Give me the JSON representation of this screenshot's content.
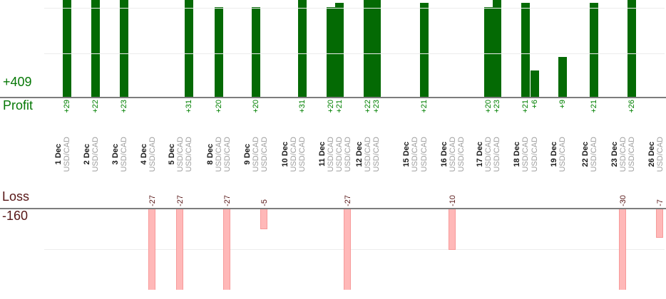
{
  "chart_data": {
    "type": "bar",
    "symbol": "USD/CAD",
    "profit": {
      "label": "Profit",
      "total": "+409",
      "bar_color": "#046a04",
      "text_color": "#008000",
      "gridlines": [
        10,
        20
      ],
      "baseline": 0,
      "visible_max": 21.5,
      "note_bars_clipped_above": true
    },
    "loss": {
      "label": "Loss",
      "total": "-160",
      "bar_color": "#ffb8b8",
      "bar_border_color": "#f79a9a",
      "text_color": "#571616",
      "gridlines": [
        -10
      ],
      "baseline": 0,
      "visible_min": -19.5,
      "note_bars_clipped_below": true
    },
    "groups": [
      {
        "date": "1 Dec",
        "trades": [
          {
            "symbol": "USD/CAD",
            "value": 29,
            "label": "+29"
          }
        ]
      },
      {
        "date": "2 Dec",
        "trades": [
          {
            "symbol": "USD/CAD",
            "value": 22,
            "label": "+22"
          }
        ]
      },
      {
        "date": "3 Dec",
        "trades": [
          {
            "symbol": "USD/CAD",
            "value": 23,
            "label": "+23"
          }
        ]
      },
      {
        "date": "4 Dec",
        "trades": [
          {
            "symbol": "USD/CAD",
            "value": -27,
            "label": "-27"
          }
        ]
      },
      {
        "date": "5 Dec",
        "trades": [
          {
            "symbol": "USD/CAD",
            "value": -27,
            "label": "-27"
          },
          {
            "symbol": "USD/CAD",
            "value": 31,
            "label": "+31"
          }
        ]
      },
      {
        "date": "8 Dec",
        "trades": [
          {
            "symbol": "USD/CAD",
            "value": 20,
            "label": "+20"
          },
          {
            "symbol": "USD/CAD",
            "value": -27,
            "label": "-27"
          }
        ]
      },
      {
        "date": "9 Dec",
        "trades": [
          {
            "symbol": "USD/CAD",
            "value": 20,
            "label": "+20"
          },
          {
            "symbol": "USD/CAD",
            "value": -5,
            "label": "-5"
          }
        ]
      },
      {
        "date": "10 Dec",
        "trades": [
          {
            "symbol": "USD/CAD",
            "value": 0,
            "label": ""
          },
          {
            "symbol": "USD/CAD",
            "value": 31,
            "label": "+31"
          }
        ]
      },
      {
        "date": "11 Dec",
        "trades": [
          {
            "symbol": "USD/CAD",
            "value": 20,
            "label": "+20"
          },
          {
            "symbol": "USD/CAD",
            "value": 21,
            "label": "+21"
          },
          {
            "symbol": "USD/CAD",
            "value": -27,
            "label": "-27"
          }
        ]
      },
      {
        "date": "12 Dec",
        "trades": [
          {
            "symbol": "USD/CAD",
            "value": 22,
            "label": "+22"
          },
          {
            "symbol": "USD/CAD",
            "value": 23,
            "label": "+23"
          }
        ]
      },
      {
        "date": "15 Dec",
        "trades": [
          {
            "symbol": "USD/CAD",
            "value": 0,
            "label": ""
          },
          {
            "symbol": "USD/CAD",
            "value": 21,
            "label": "+21"
          }
        ]
      },
      {
        "date": "16 Dec",
        "trades": [
          {
            "symbol": "USD/CAD",
            "value": -10,
            "label": "-10"
          },
          {
            "symbol": "USD/CAD",
            "value": 0,
            "label": ""
          }
        ]
      },
      {
        "date": "17 Dec",
        "trades": [
          {
            "symbol": "USD/CAD",
            "value": 20,
            "label": "+20"
          },
          {
            "symbol": "USD/CAD",
            "value": 23,
            "label": "+23"
          }
        ]
      },
      {
        "date": "18 Dec",
        "trades": [
          {
            "symbol": "USD/CAD",
            "value": 21,
            "label": "+21"
          },
          {
            "symbol": "USD/CAD",
            "value": 6,
            "label": "+6"
          }
        ]
      },
      {
        "date": "19 Dec",
        "trades": [
          {
            "symbol": "USD/CAD",
            "value": 9,
            "label": "+9"
          }
        ]
      },
      {
        "date": "22 Dec",
        "trades": [
          {
            "symbol": "USD/CAD",
            "value": 21,
            "label": "+21"
          }
        ]
      },
      {
        "date": "23 Dec",
        "trades": [
          {
            "symbol": "USD/CAD",
            "value": -30,
            "label": "-30"
          },
          {
            "symbol": "USD/CAD",
            "value": 26,
            "label": "+26"
          }
        ]
      },
      {
        "date": "26 Dec",
        "trades": [
          {
            "symbol": "USD/CAD",
            "value": -7,
            "label": "-7"
          }
        ]
      }
    ]
  }
}
